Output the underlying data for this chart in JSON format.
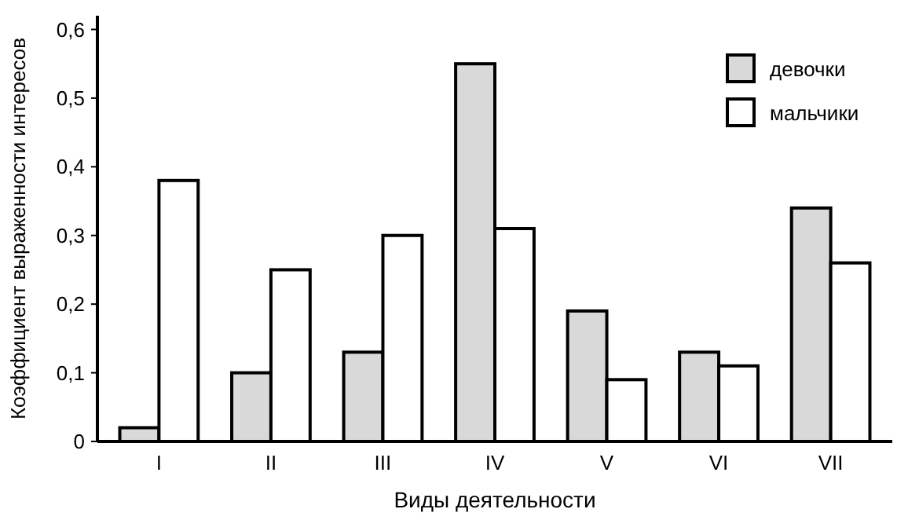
{
  "chart_data": {
    "type": "bar",
    "xlabel": "Виды деятельности",
    "ylabel": "Коэффициент выраженности интересов",
    "categories": [
      "I",
      "II",
      "III",
      "IV",
      "V",
      "VI",
      "VII"
    ],
    "series": [
      {
        "name": "девочки",
        "color": "#d9d9d9",
        "values": [
          0.02,
          0.1,
          0.13,
          0.55,
          0.19,
          0.13,
          0.34
        ]
      },
      {
        "name": "мальчики",
        "color": "#ffffff",
        "values": [
          0.38,
          0.25,
          0.3,
          0.31,
          0.09,
          0.11,
          0.26
        ]
      }
    ],
    "ylim": [
      0,
      0.62
    ],
    "yticks": [
      {
        "value": 0,
        "label": "0"
      },
      {
        "value": 0.1,
        "label": "0,1"
      },
      {
        "value": 0.2,
        "label": "0,2"
      },
      {
        "value": 0.3,
        "label": "0,3"
      },
      {
        "value": 0.4,
        "label": "0,4"
      },
      {
        "value": 0.5,
        "label": "0,5"
      },
      {
        "value": 0.6,
        "label": "0,6"
      }
    ],
    "legend": "top right",
    "grid": false
  }
}
